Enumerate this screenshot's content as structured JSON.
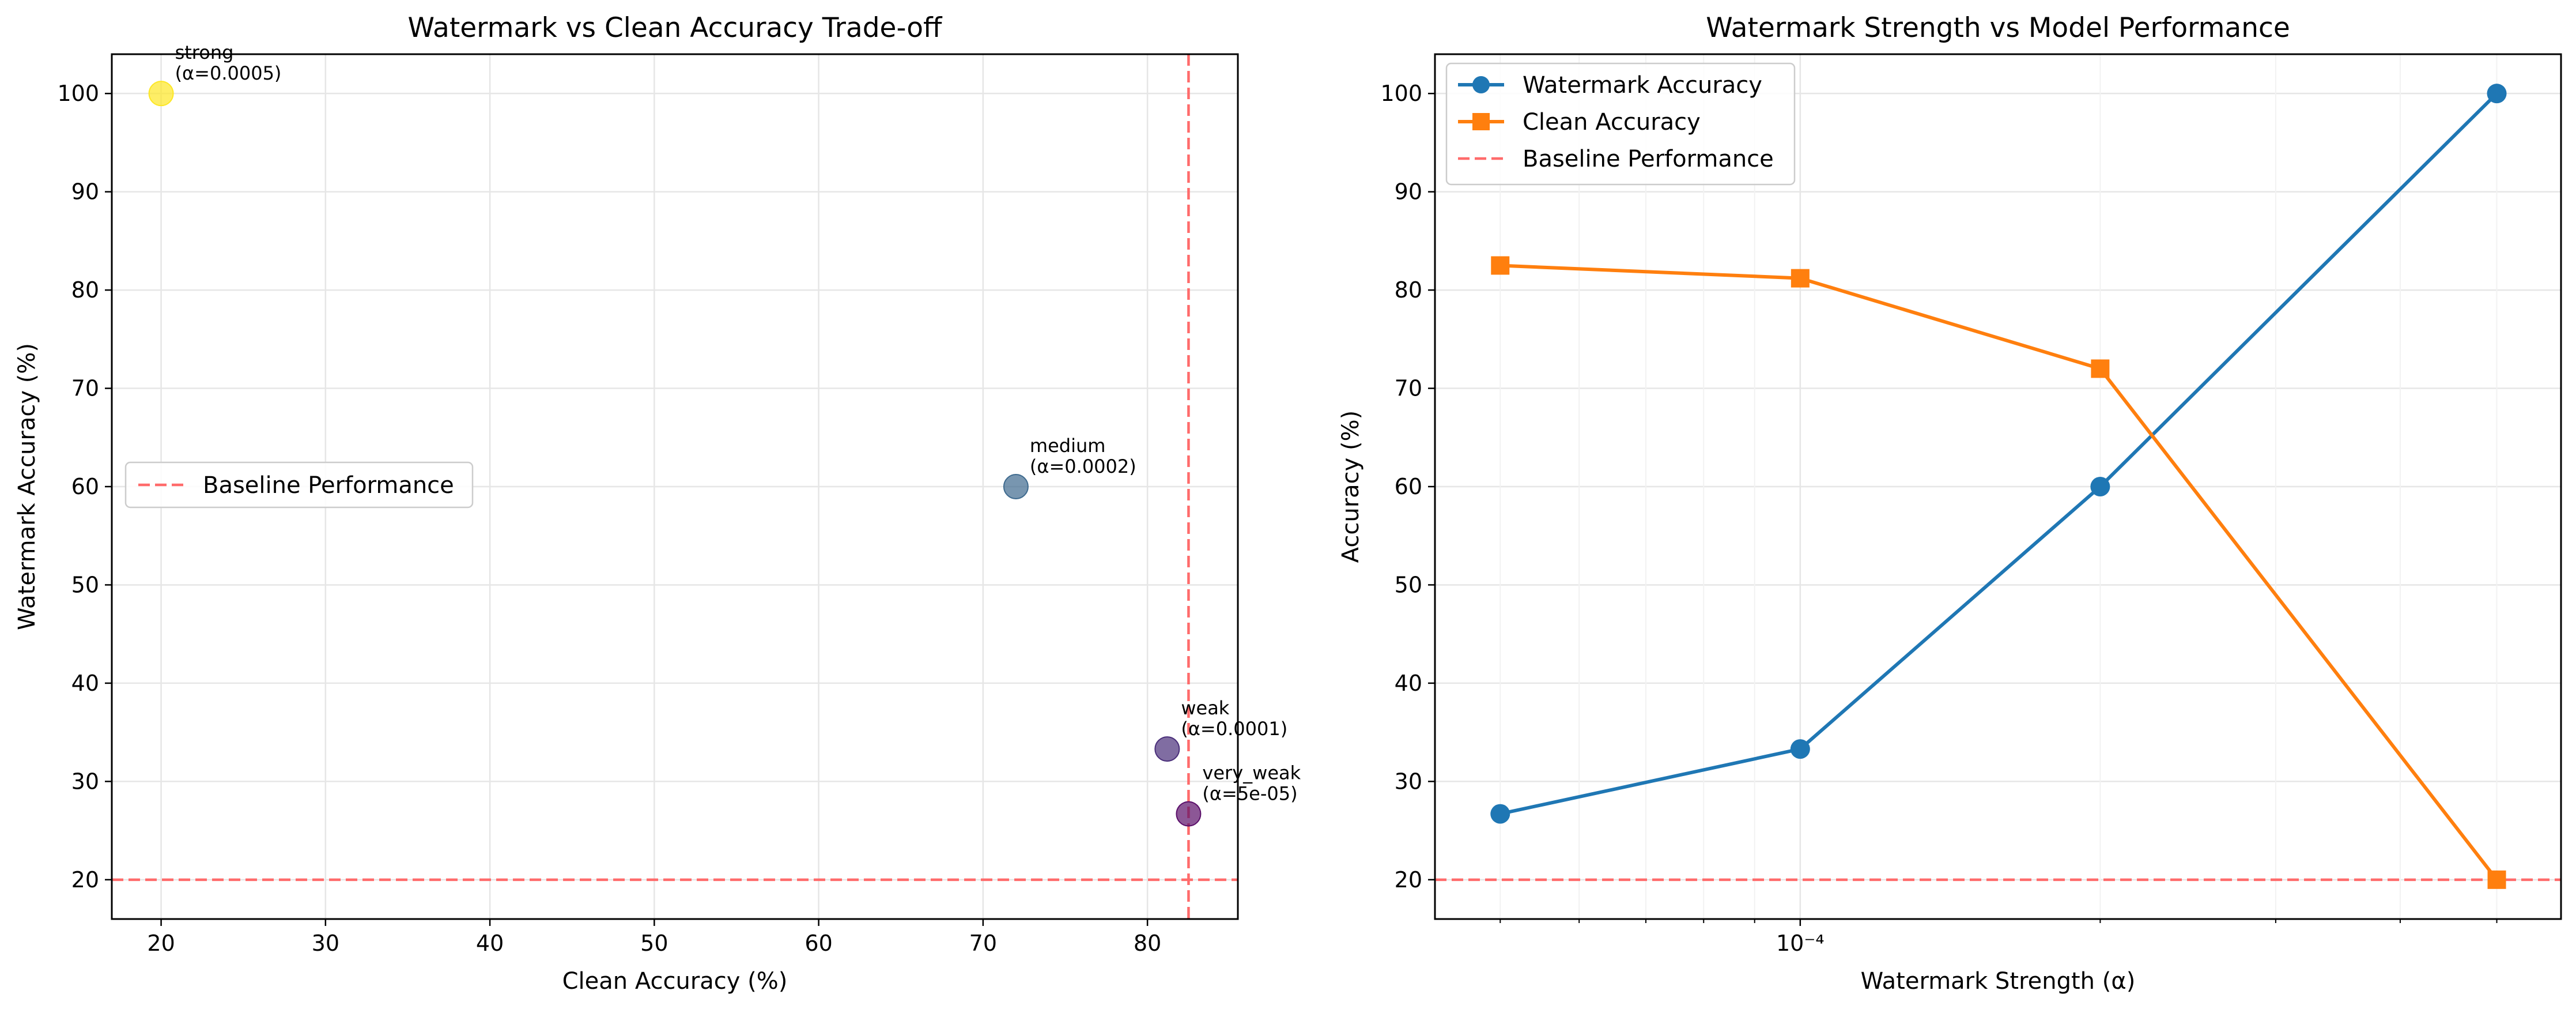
{
  "figure": {
    "left_title": "Watermark vs Clean Accuracy Trade-off",
    "right_title": "Watermark Strength vs Model Performance"
  },
  "chart_data": [
    {
      "type": "scatter",
      "title": "Watermark vs Clean Accuracy Trade-off",
      "xlabel": "Clean Accuracy (%)",
      "ylabel": "Watermark Accuracy (%)",
      "xlim": [
        17,
        85.5
      ],
      "ylim": [
        16,
        104
      ],
      "xticks": [
        20,
        30,
        40,
        50,
        60,
        70,
        80
      ],
      "yticks": [
        20,
        30,
        40,
        50,
        60,
        70,
        80,
        90,
        100
      ],
      "grid": true,
      "legend_position": "center-left",
      "points": [
        {
          "label": "strong",
          "alpha_label": "(α=0.0005)",
          "x": 20,
          "y": 100,
          "color": "#fde725"
        },
        {
          "label": "medium",
          "alpha_label": "(α=0.0002)",
          "x": 72,
          "y": 60,
          "color": "#3e6a8e"
        },
        {
          "label": "weak",
          "alpha_label": "(α=0.0001)",
          "x": 81.2,
          "y": 33.3,
          "color": "#4a2f7a"
        },
        {
          "label": "very_weak",
          "alpha_label": "(α=5e-05)",
          "x": 82.5,
          "y": 26.7,
          "color": "#5b0f6a"
        }
      ],
      "reference_lines": [
        {
          "orientation": "horizontal",
          "value": 20,
          "color": "#ff6b6b"
        },
        {
          "orientation": "vertical",
          "value": 82.5,
          "color": "#ff6b6b"
        }
      ],
      "legend": [
        {
          "name": "Baseline Performance",
          "style": "dashed",
          "color": "#ff6b6b"
        }
      ]
    },
    {
      "type": "line",
      "title": "Watermark Strength vs Model Performance",
      "xlabel": "Watermark Strength (α)",
      "ylabel": "Accuracy (%)",
      "xscale": "log",
      "xlim": [
        4.3e-05,
        0.00058
      ],
      "ylim": [
        16,
        104
      ],
      "xtick_labels": [
        {
          "value": 0.0001,
          "label": "10⁻⁴"
        }
      ],
      "yticks": [
        20,
        30,
        40,
        50,
        60,
        70,
        80,
        90,
        100
      ],
      "grid": true,
      "legend_position": "top-left",
      "x": [
        5e-05,
        0.0001,
        0.0002,
        0.0005
      ],
      "series": [
        {
          "name": "Watermark Accuracy",
          "values": [
            26.7,
            33.3,
            60,
            100
          ],
          "color": "#1f77b4",
          "marker": "circle"
        },
        {
          "name": "Clean Accuracy",
          "values": [
            82.5,
            81.2,
            72,
            20
          ],
          "color": "#ff7f0e",
          "marker": "square"
        }
      ],
      "reference_lines": [
        {
          "orientation": "horizontal",
          "value": 20,
          "color": "#ff6b6b",
          "name": "Baseline Performance"
        }
      ],
      "legend": [
        {
          "name": "Watermark Accuracy",
          "style": "line-circle",
          "color": "#1f77b4"
        },
        {
          "name": "Clean Accuracy",
          "style": "line-square",
          "color": "#ff7f0e"
        },
        {
          "name": "Baseline Performance",
          "style": "dashed",
          "color": "#ff6b6b"
        }
      ]
    }
  ]
}
